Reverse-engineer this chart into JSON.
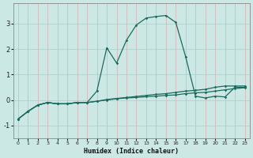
{
  "xlabel": "Humidex (Indice chaleur)",
  "bg_color": "#cce8e4",
  "grid_color": "#aaccc8",
  "line_color": "#1a6b5e",
  "xlim": [
    -0.5,
    23.5
  ],
  "ylim": [
    -1.5,
    3.8
  ],
  "yticks": [
    -1,
    0,
    1,
    2,
    3
  ],
  "xticks": [
    0,
    1,
    2,
    3,
    4,
    5,
    6,
    7,
    8,
    9,
    10,
    11,
    12,
    13,
    14,
    15,
    16,
    17,
    18,
    19,
    20,
    21,
    22,
    23
  ],
  "series1_x": [
    0,
    1,
    2,
    3,
    4,
    5,
    6,
    7,
    8,
    9,
    10,
    11,
    12,
    13,
    14,
    15,
    16,
    17,
    18,
    19,
    20,
    21,
    22,
    23
  ],
  "series1_y": [
    -0.75,
    -0.45,
    -0.2,
    -0.1,
    -0.15,
    -0.15,
    -0.1,
    -0.1,
    -0.05,
    0.0,
    0.05,
    0.08,
    0.1,
    0.13,
    0.15,
    0.18,
    0.2,
    0.25,
    0.28,
    0.3,
    0.35,
    0.4,
    0.45,
    0.48
  ],
  "series2_x": [
    0,
    1,
    2,
    3,
    4,
    5,
    6,
    7,
    8,
    9,
    10,
    11,
    12,
    13,
    14,
    15,
    16,
    17,
    18,
    19,
    20,
    21,
    22,
    23
  ],
  "series2_y": [
    -0.75,
    -0.45,
    -0.2,
    -0.1,
    -0.15,
    -0.15,
    -0.1,
    -0.1,
    -0.05,
    0.02,
    0.06,
    0.1,
    0.14,
    0.18,
    0.22,
    0.25,
    0.3,
    0.35,
    0.38,
    0.42,
    0.5,
    0.55,
    0.55,
    0.55
  ],
  "series3_x": [
    0,
    1,
    2,
    3,
    4,
    5,
    6,
    7,
    8,
    9,
    10,
    11,
    12,
    13,
    14,
    15,
    16,
    17,
    18,
    19,
    20,
    21,
    22,
    23
  ],
  "series3_y": [
    -0.75,
    -0.45,
    -0.2,
    -0.1,
    -0.15,
    -0.15,
    -0.1,
    -0.1,
    0.35,
    2.05,
    1.45,
    2.35,
    2.95,
    3.22,
    3.28,
    3.32,
    3.05,
    1.7,
    0.15,
    0.08,
    0.15,
    0.12,
    0.5,
    0.5
  ]
}
